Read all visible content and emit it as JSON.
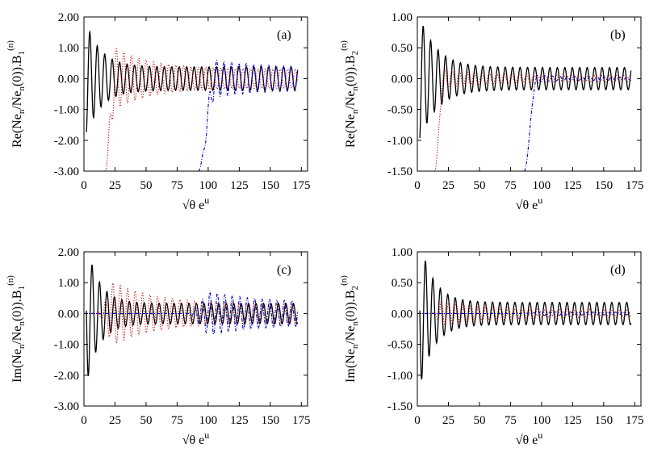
{
  "chart_data": [
    {
      "type": "line",
      "panel_label": "(a)",
      "xlabel": "√θ e^u",
      "ylabel": "Re(Ne_n/Ne_n(0)).B_1^(n)",
      "xlim": [
        0,
        180
      ],
      "ylim": [
        -3.0,
        2.0
      ],
      "xticks": [
        "0",
        "25",
        "50",
        "75",
        "100",
        "125",
        "150",
        "175"
      ],
      "yticks": [
        "-3.00",
        "-2.00",
        "-1.00",
        "0.00",
        "1.00",
        "2.00"
      ],
      "grid": false,
      "series": [
        {
          "color": "#000000",
          "dash": "solid",
          "fn": "osc",
          "p": {
            "x0": 2,
            "period": 6.0,
            "A": 1.8,
            "tau": 12,
            "base": 0.38,
            "phase": -1.3
          }
        },
        {
          "color": "#cc0000",
          "dash": "dot",
          "fn": "growosc",
          "p": {
            "x0": 17,
            "xpeak": 25,
            "period": 6.0,
            "A0": 1.0,
            "tau": 30,
            "base": 0.3,
            "start": -3.0,
            "phase": 0.4
          }
        },
        {
          "color": "#0000cc",
          "dash": "dashdot",
          "fn": "growosc",
          "p": {
            "x0": 92,
            "xpeak": 106,
            "period": 6.0,
            "A0": 0.6,
            "tau": 40,
            "base": 0.35,
            "start": -3.0,
            "phase": 0.8
          }
        }
      ]
    },
    {
      "type": "line",
      "panel_label": "(b)",
      "xlabel": "√θ e^u",
      "ylabel": "Re(Ne_n/Ne_n(0)).B_2^(n)",
      "xlim": [
        0,
        180
      ],
      "ylim": [
        -1.5,
        1.0
      ],
      "xticks": [
        "0",
        "25",
        "50",
        "75",
        "100",
        "125",
        "150",
        "175"
      ],
      "yticks": [
        "-1.50",
        "-1.00",
        "-0.50",
        "0.00",
        "0.50",
        "1.00"
      ],
      "grid": false,
      "series": [
        {
          "color": "#000000",
          "dash": "solid",
          "fn": "osc",
          "p": {
            "x0": 2,
            "period": 6.0,
            "A": 1.0,
            "tau": 14,
            "base": 0.18,
            "phase": -1.3
          }
        },
        {
          "color": "#cc0000",
          "dash": "dot",
          "fn": "growosc",
          "p": {
            "x0": 14,
            "xpeak": 21,
            "period": 6.0,
            "A0": 0.15,
            "tau": 40,
            "base": 0.05,
            "start": -1.5,
            "phase": 0.5
          }
        },
        {
          "color": "#0000cc",
          "dash": "dashdot",
          "fn": "growosc",
          "p": {
            "x0": 86,
            "xpeak": 96,
            "period": 6.0,
            "A0": 0.05,
            "tau": 40,
            "base": 0.02,
            "start": -1.5,
            "phase": 0.8
          }
        }
      ]
    },
    {
      "type": "line",
      "panel_label": "(c)",
      "xlabel": "√θ e^u",
      "ylabel": "Im(Ne_n/Ne_n(0)).B_1^(n)",
      "xlim": [
        0,
        180
      ],
      "ylim": [
        -3.0,
        2.0
      ],
      "xticks": [
        "0",
        "25",
        "50",
        "75",
        "100",
        "125",
        "150",
        "175"
      ],
      "yticks": [
        "-3.00",
        "-2.00",
        "-1.00",
        "0.00",
        "1.00",
        "2.00"
      ],
      "grid": false,
      "series": [
        {
          "color": "#000000",
          "dash": "solid",
          "fn": "osc",
          "p": {
            "x0": 2,
            "period": 6.0,
            "A": 2.3,
            "tau": 10,
            "base": 0.33,
            "phase": 3.1
          }
        },
        {
          "color": "#cc0000",
          "dash": "dot",
          "fn": "bumposc",
          "p": {
            "x0": 12,
            "xpeak": 24,
            "period": 6.0,
            "A0": 1.0,
            "tau": 35,
            "base": 0.3,
            "phase": 2.4
          }
        },
        {
          "color": "#0000cc",
          "dash": "dashdot",
          "fn": "bumposc",
          "p": {
            "x0": 85,
            "xpeak": 102,
            "period": 6.0,
            "A0": 0.7,
            "tau": 40,
            "base": 0.35,
            "phase": 2.2
          }
        }
      ]
    },
    {
      "type": "line",
      "panel_label": "(d)",
      "xlabel": "√θ e^u",
      "ylabel": "Im(Ne_n/Ne_n(0)).B_2^(n)",
      "xlim": [
        0,
        180
      ],
      "ylim": [
        -1.5,
        1.0
      ],
      "xticks": [
        "0",
        "25",
        "50",
        "75",
        "100",
        "125",
        "150",
        "175"
      ],
      "yticks": [
        "-1.50",
        "-1.00",
        "-0.50",
        "0.00",
        "0.50",
        "1.00"
      ],
      "grid": false,
      "series": [
        {
          "color": "#000000",
          "dash": "solid",
          "fn": "osc",
          "p": {
            "x0": 2,
            "period": 6.0,
            "A": 1.2,
            "tau": 11,
            "base": 0.18,
            "phase": 3.1
          }
        },
        {
          "color": "#cc0000",
          "dash": "dot",
          "fn": "bumposc",
          "p": {
            "x0": 12,
            "xpeak": 20,
            "period": 6.0,
            "A0": 0.2,
            "tau": 40,
            "base": 0.06,
            "phase": 2.4
          }
        },
        {
          "color": "#0000cc",
          "dash": "dashdot",
          "fn": "bumposc",
          "p": {
            "x0": 85,
            "xpeak": 100,
            "period": 6.0,
            "A0": 0.03,
            "tau": 40,
            "base": 0.02,
            "phase": 2.2
          }
        }
      ]
    }
  ]
}
